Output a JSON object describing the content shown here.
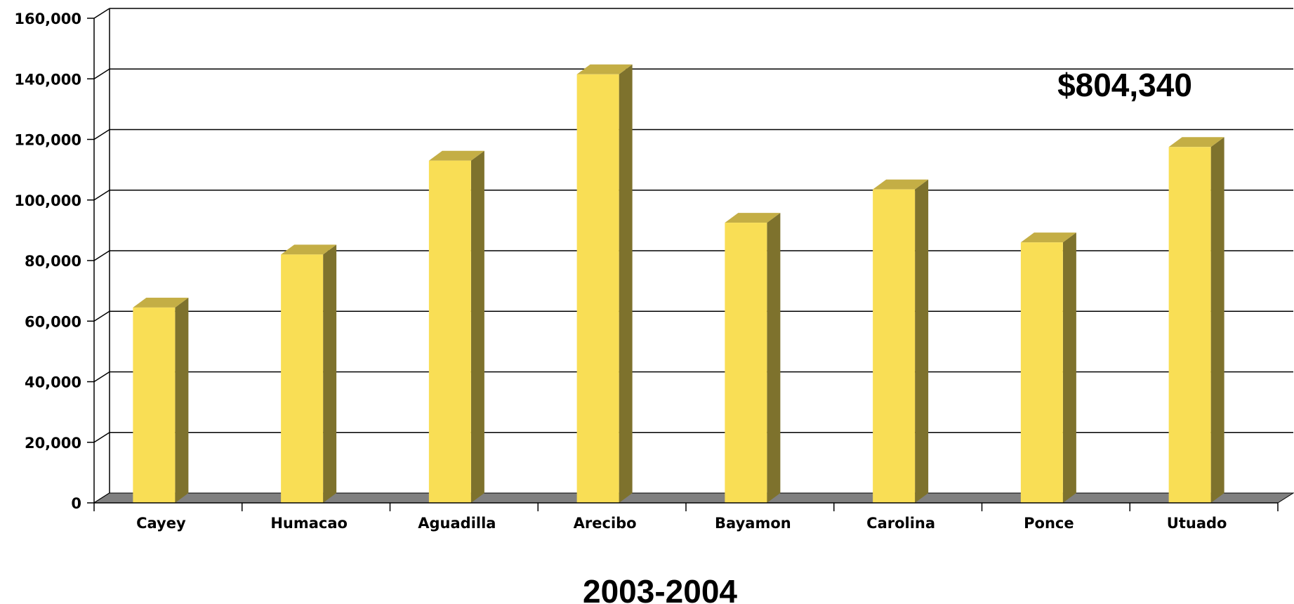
{
  "chart_data": {
    "type": "bar",
    "style": "3d-column",
    "categories": [
      "Cayey",
      "Humacao",
      "Aguadilla",
      "Arecibo",
      "Bayamon",
      "Carolina",
      "Ponce",
      "Utuado"
    ],
    "values": [
      64500,
      82000,
      113000,
      141500,
      92500,
      103500,
      86000,
      117500
    ],
    "xlabel": "2003-2004",
    "ylabel": "",
    "ylim": [
      0,
      160000
    ],
    "yticks": [
      "0",
      "20,000",
      "40,000",
      "60,000",
      "80,000",
      "100,000",
      "120,000",
      "140,000",
      "160,000"
    ],
    "annotation": "$804,340",
    "grid": true,
    "legend": "none",
    "colors": {
      "bar_front": "#F9DE55",
      "bar_side": "#7E722D",
      "bar_top": "#C4AE45",
      "floor": "#808080",
      "grid": "#000000"
    }
  }
}
